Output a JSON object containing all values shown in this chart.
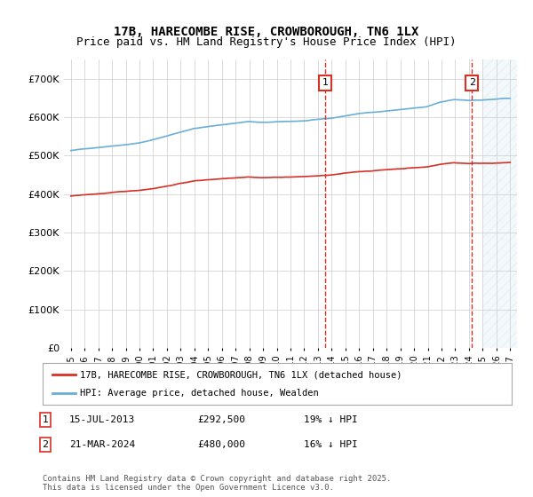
{
  "title": "17B, HARECOMBE RISE, CROWBOROUGH, TN6 1LX",
  "subtitle": "Price paid vs. HM Land Registry's House Price Index (HPI)",
  "ylabel_ticks": [
    "£0",
    "£100K",
    "£200K",
    "£300K",
    "£400K",
    "£500K",
    "£600K",
    "£700K"
  ],
  "ytick_values": [
    0,
    100000,
    200000,
    300000,
    400000,
    500000,
    600000,
    700000
  ],
  "ylim": [
    0,
    750000
  ],
  "xlim_start": 1994.5,
  "xlim_end": 2027.5,
  "xticks": [
    1995,
    1996,
    1997,
    1998,
    1999,
    2000,
    2001,
    2002,
    2003,
    2004,
    2005,
    2006,
    2007,
    2008,
    2009,
    2010,
    2011,
    2012,
    2013,
    2014,
    2015,
    2016,
    2017,
    2018,
    2019,
    2020,
    2021,
    2022,
    2023,
    2024,
    2025,
    2026,
    2027
  ],
  "hpi_color": "#6baed6",
  "price_color": "#d73027",
  "marker1_date": 2013.54,
  "marker2_date": 2024.22,
  "marker1_price": 292500,
  "marker2_price": 480000,
  "legend_line1": "17B, HARECOMBE RISE, CROWBOROUGH, TN6 1LX (detached house)",
  "legend_line2": "HPI: Average price, detached house, Wealden",
  "annotation1": "1",
  "annotation2": "2",
  "note1": "1    15-JUL-2013         £292,500         19% ↓ HPI",
  "note2": "2    21-MAR-2024         £480,000         16% ↓ HPI",
  "copyright": "Contains HM Land Registry data © Crown copyright and database right 2025.\nThis data is licensed under the Open Government Licence v3.0.",
  "bg_color": "#ffffff",
  "grid_color": "#cccccc",
  "hatch_color": "#6baed6",
  "future_start": 2025.0
}
